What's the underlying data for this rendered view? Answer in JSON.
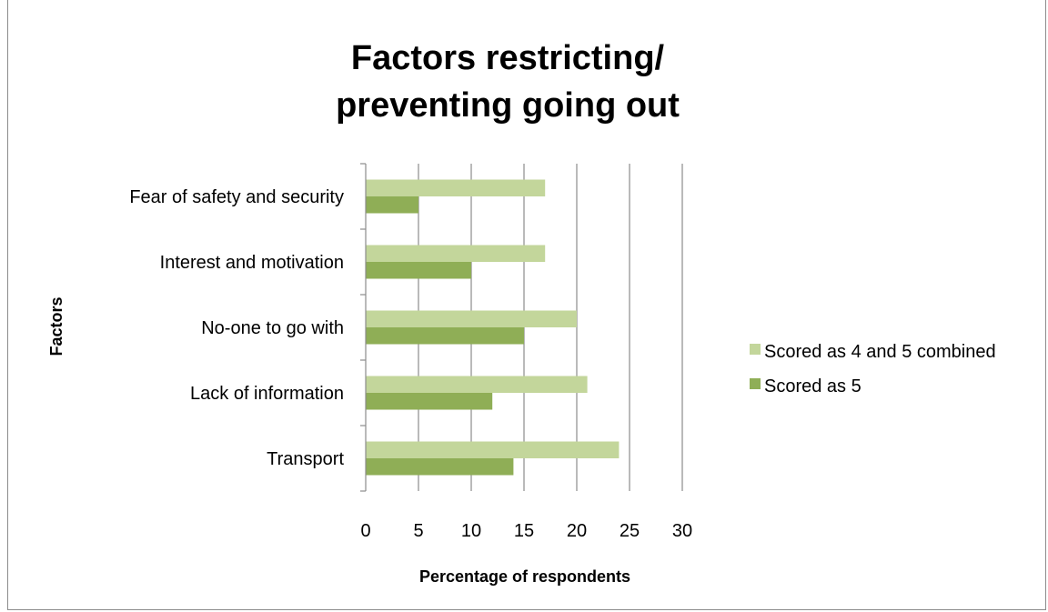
{
  "chart_data": {
    "type": "bar",
    "orientation": "horizontal",
    "title_lines": [
      "Factors restricting/",
      "preventing going out"
    ],
    "xlabel": "Percentage of respondents",
    "ylabel": "Factors",
    "xlim": [
      0,
      30
    ],
    "xticks": [
      0,
      5,
      10,
      15,
      20,
      25,
      30
    ],
    "grid": "vertical",
    "legend_position": "right",
    "categories": [
      "Fear of safety and security",
      "Interest and motivation",
      "No-one to go with",
      "Lack of information",
      "Transport"
    ],
    "series": [
      {
        "name": "Scored as 4 and 5 combined",
        "color": "#c3d69b",
        "values": [
          17,
          17,
          20,
          21,
          24
        ]
      },
      {
        "name": "Scored as 5",
        "color": "#8fae56",
        "values": [
          5,
          10,
          15,
          12,
          14
        ]
      }
    ]
  }
}
